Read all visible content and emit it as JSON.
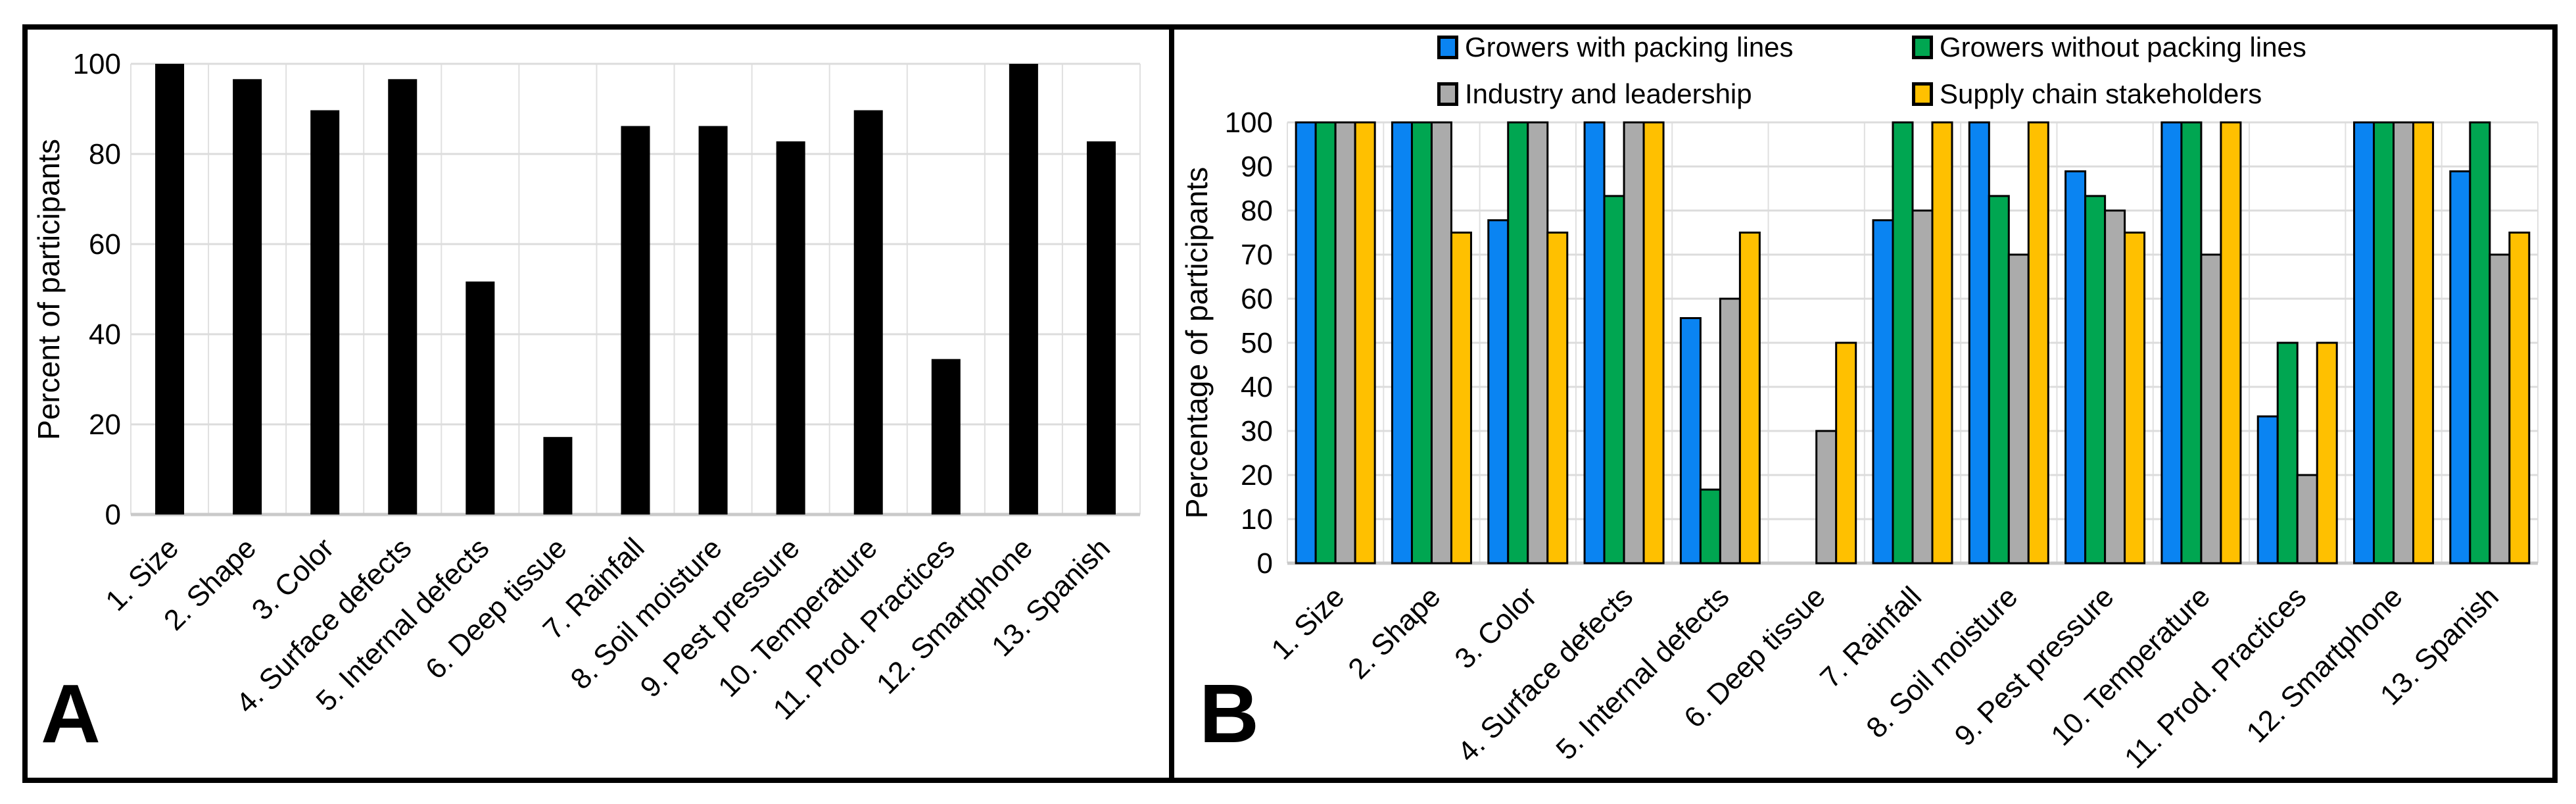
{
  "figure": {
    "panel_a_letter": "A",
    "panel_b_letter": "B"
  },
  "colors": {
    "bar_black": "#000000",
    "series_blue": "#0a84f2",
    "series_green": "#00a651",
    "series_gray": "#ababab",
    "series_yellow": "#ffc000",
    "gridline": "#dcdcdc",
    "axis_line": "#c9c9c9",
    "vertical_gridline": "#e0e0e0"
  },
  "chart_data": [
    {
      "id": "A",
      "type": "bar",
      "title": "",
      "xlabel": "",
      "ylabel": "Percent of participants",
      "ylim": [
        0,
        100
      ],
      "ytick_step": 20,
      "ytick_labels": [
        "0",
        "20",
        "40",
        "60",
        "80",
        "100"
      ],
      "grid": true,
      "bar_color": "#000000",
      "categories": [
        "1. Size",
        "2. Shape",
        "3. Color",
        "4. Surface defects",
        "5. Internal defects",
        "6. Deep tissue",
        "7. Rainfall",
        "8. Soil moisture",
        "9. Pest pressure",
        "10. Temperature",
        "11. Prod. Practices",
        "12. Smartphone",
        "13. Spanish"
      ],
      "values": [
        100,
        96.6,
        89.7,
        96.6,
        51.7,
        17.2,
        86.2,
        86.2,
        82.8,
        89.7,
        34.5,
        100,
        82.8
      ]
    },
    {
      "id": "B",
      "type": "bar",
      "title": "",
      "xlabel": "",
      "ylabel": "Percentage of participants",
      "ylim": [
        0,
        100
      ],
      "ytick_step": 10,
      "ytick_labels": [
        "0",
        "10",
        "20",
        "30",
        "40",
        "50",
        "60",
        "70",
        "80",
        "90",
        "100"
      ],
      "grid": true,
      "legend_position": "top",
      "categories": [
        "1. Size",
        "2. Shape",
        "3. Color",
        "4. Surface defects",
        "5. Internal defects",
        "6. Deep tissue",
        "7. Rainfall",
        "8. Soil moisture",
        "9. Pest pressure",
        "10. Temperature",
        "11. Prod. Practices",
        "12. Smartphone",
        "13. Spanish"
      ],
      "series": [
        {
          "name": "Growers with packing lines",
          "color": "#0a84f2",
          "values": [
            100,
            100,
            77.8,
            100,
            55.6,
            0,
            77.8,
            100,
            88.9,
            100,
            33.3,
            100,
            88.9
          ]
        },
        {
          "name": "Growers without packing lines",
          "color": "#00a651",
          "values": [
            100,
            100,
            100,
            83.3,
            16.7,
            0,
            100,
            83.3,
            83.3,
            100,
            50,
            100,
            100
          ]
        },
        {
          "name": "Industry and leadership",
          "color": "#ababab",
          "values": [
            100,
            100,
            100,
            100,
            60,
            30,
            80,
            70,
            80,
            70,
            20,
            100,
            70
          ]
        },
        {
          "name": "Supply chain stakeholders",
          "color": "#ffc000",
          "values": [
            100,
            75,
            75,
            100,
            75,
            50,
            100,
            100,
            75,
            100,
            50,
            100,
            75
          ]
        }
      ]
    }
  ]
}
